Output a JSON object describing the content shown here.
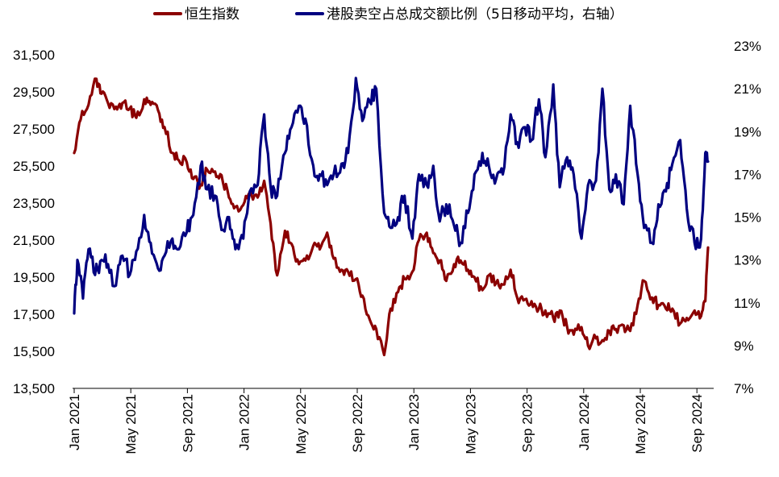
{
  "chart_data": {
    "type": "line",
    "title": "",
    "xlabel": "",
    "ylabel": "",
    "x_ticks": [
      "Jan 2021",
      "May 2021",
      "Sep 2021",
      "Jan 2022",
      "May 2022",
      "Sep 2022",
      "Jan 2023",
      "May 2023",
      "Sep 2023",
      "Jan 2024",
      "May 2024",
      "Sep 2024"
    ],
    "left_axis": {
      "ylim": [
        13500,
        31500
      ],
      "ticks": [
        "13,500",
        "15,500",
        "17,500",
        "19,500",
        "21,500",
        "23,500",
        "25,500",
        "27,500",
        "29,500",
        "31,500"
      ]
    },
    "right_axis": {
      "ylim": [
        7,
        23
      ],
      "ticks": [
        "7%",
        "9%",
        "11%",
        "13%",
        "15%",
        "17%",
        "19%",
        "21%",
        "23%"
      ]
    },
    "legend": {
      "placement": "top"
    },
    "series": [
      {
        "name": "恒生指数",
        "axis": "left",
        "color": "#8b0000",
        "points": [
          [
            "2021-01-01",
            26200
          ],
          [
            "2021-01-15",
            28000
          ],
          [
            "2021-02-01",
            28800
          ],
          [
            "2021-02-18",
            30200
          ],
          [
            "2021-03-01",
            29400
          ],
          [
            "2021-03-15",
            28900
          ],
          [
            "2021-04-01",
            28700
          ],
          [
            "2021-04-15",
            28900
          ],
          [
            "2021-05-01",
            28600
          ],
          [
            "2021-05-15",
            28100
          ],
          [
            "2021-06-01",
            29100
          ],
          [
            "2021-06-15",
            28800
          ],
          [
            "2021-07-01",
            28500
          ],
          [
            "2021-07-15",
            27600
          ],
          [
            "2021-08-01",
            26200
          ],
          [
            "2021-08-15",
            25800
          ],
          [
            "2021-09-01",
            25700
          ],
          [
            "2021-09-15",
            24800
          ],
          [
            "2021-10-01",
            24500
          ],
          [
            "2021-10-15",
            25300
          ],
          [
            "2021-11-01",
            25200
          ],
          [
            "2021-11-15",
            25000
          ],
          [
            "2021-12-01",
            23800
          ],
          [
            "2021-12-15",
            23300
          ],
          [
            "2022-01-01",
            23400
          ],
          [
            "2022-01-15",
            24100
          ],
          [
            "2022-02-01",
            23800
          ],
          [
            "2022-02-15",
            24700
          ],
          [
            "2022-03-01",
            22400
          ],
          [
            "2022-03-15",
            19600
          ],
          [
            "2022-04-01",
            22000
          ],
          [
            "2022-04-15",
            21300
          ],
          [
            "2022-05-01",
            20200
          ],
          [
            "2022-05-15",
            20400
          ],
          [
            "2022-06-01",
            21200
          ],
          [
            "2022-06-15",
            21000
          ],
          [
            "2022-07-01",
            21900
          ],
          [
            "2022-07-15",
            20500
          ],
          [
            "2022-08-01",
            19900
          ],
          [
            "2022-08-15",
            19800
          ],
          [
            "2022-09-01",
            19400
          ],
          [
            "2022-09-15",
            18500
          ],
          [
            "2022-10-01",
            17200
          ],
          [
            "2022-10-15",
            16700
          ],
          [
            "2022-11-01",
            15300
          ],
          [
            "2022-11-15",
            17800
          ],
          [
            "2022-12-01",
            18700
          ],
          [
            "2022-12-15",
            19400
          ],
          [
            "2023-01-01",
            19800
          ],
          [
            "2023-01-15",
            21500
          ],
          [
            "2023-02-01",
            21900
          ],
          [
            "2023-02-15",
            20800
          ],
          [
            "2023-03-01",
            20400
          ],
          [
            "2023-03-15",
            19300
          ],
          [
            "2023-04-01",
            20200
          ],
          [
            "2023-04-15",
            20400
          ],
          [
            "2023-05-01",
            19900
          ],
          [
            "2023-05-15",
            19500
          ],
          [
            "2023-06-01",
            18800
          ],
          [
            "2023-06-15",
            19600
          ],
          [
            "2023-07-01",
            19200
          ],
          [
            "2023-07-15",
            19100
          ],
          [
            "2023-08-01",
            19900
          ],
          [
            "2023-08-15",
            18400
          ],
          [
            "2023-09-01",
            18300
          ],
          [
            "2023-09-15",
            18200
          ],
          [
            "2023-10-01",
            17800
          ],
          [
            "2023-10-15",
            17700
          ],
          [
            "2023-11-01",
            17300
          ],
          [
            "2023-11-15",
            17700
          ],
          [
            "2023-12-01",
            16800
          ],
          [
            "2023-12-15",
            16400
          ],
          [
            "2024-01-01",
            16800
          ],
          [
            "2024-01-15",
            15800
          ],
          [
            "2024-02-01",
            16200
          ],
          [
            "2024-02-15",
            16100
          ],
          [
            "2024-03-01",
            16600
          ],
          [
            "2024-03-15",
            16700
          ],
          [
            "2024-04-01",
            16900
          ],
          [
            "2024-04-15",
            16600
          ],
          [
            "2024-05-01",
            18000
          ],
          [
            "2024-05-15",
            19300
          ],
          [
            "2024-06-01",
            18400
          ],
          [
            "2024-06-15",
            18000
          ],
          [
            "2024-07-01",
            17800
          ],
          [
            "2024-07-15",
            17800
          ],
          [
            "2024-08-01",
            17000
          ],
          [
            "2024-08-15",
            17300
          ],
          [
            "2024-09-01",
            17700
          ],
          [
            "2024-09-15",
            17400
          ],
          [
            "2024-09-24",
            18200
          ],
          [
            "2024-09-30",
            21100
          ]
        ]
      },
      {
        "name": "港股卖空占总成交额比例（5日移动平均，右轴）",
        "axis": "right",
        "color": "#000080",
        "points": [
          [
            "2021-01-01",
            10.5
          ],
          [
            "2021-01-08",
            13.0
          ],
          [
            "2021-01-20",
            11.2
          ],
          [
            "2021-02-01",
            13.5
          ],
          [
            "2021-02-15",
            12.3
          ],
          [
            "2021-03-01",
            13.0
          ],
          [
            "2021-03-15",
            12.8
          ],
          [
            "2021-04-01",
            11.8
          ],
          [
            "2021-04-15",
            13.2
          ],
          [
            "2021-05-01",
            12.3
          ],
          [
            "2021-05-15",
            13.4
          ],
          [
            "2021-06-01",
            15.1
          ],
          [
            "2021-06-15",
            13.8
          ],
          [
            "2021-07-01",
            12.6
          ],
          [
            "2021-07-15",
            13.2
          ],
          [
            "2021-08-01",
            14.0
          ],
          [
            "2021-08-15",
            13.5
          ],
          [
            "2021-09-01",
            14.3
          ],
          [
            "2021-09-15",
            15.1
          ],
          [
            "2021-10-01",
            17.4
          ],
          [
            "2021-10-15",
            16.3
          ],
          [
            "2021-11-01",
            16.0
          ],
          [
            "2021-11-15",
            14.4
          ],
          [
            "2021-12-01",
            15.0
          ],
          [
            "2021-12-15",
            13.5
          ],
          [
            "2022-01-01",
            14.0
          ],
          [
            "2022-01-15",
            16.2
          ],
          [
            "2022-02-01",
            16.5
          ],
          [
            "2022-02-15",
            19.8
          ],
          [
            "2022-03-01",
            16.4
          ],
          [
            "2022-03-15",
            16.0
          ],
          [
            "2022-04-01",
            18.0
          ],
          [
            "2022-04-15",
            19.2
          ],
          [
            "2022-05-01",
            20.2
          ],
          [
            "2022-05-15",
            19.6
          ],
          [
            "2022-06-01",
            17.4
          ],
          [
            "2022-06-15",
            17.0
          ],
          [
            "2022-07-01",
            16.5
          ],
          [
            "2022-07-15",
            17.0
          ],
          [
            "2022-08-01",
            17.5
          ],
          [
            "2022-08-15",
            18.0
          ],
          [
            "2022-09-01",
            21.5
          ],
          [
            "2022-09-15",
            19.5
          ],
          [
            "2022-10-01",
            20.4
          ],
          [
            "2022-10-15",
            21.0
          ],
          [
            "2022-11-01",
            15.2
          ],
          [
            "2022-11-15",
            14.5
          ],
          [
            "2022-12-01",
            15.0
          ],
          [
            "2022-12-15",
            16.0
          ],
          [
            "2023-01-01",
            14.0
          ],
          [
            "2023-01-15",
            17.0
          ],
          [
            "2023-02-01",
            16.5
          ],
          [
            "2023-02-15",
            17.4
          ],
          [
            "2023-03-01",
            14.8
          ],
          [
            "2023-03-15",
            15.6
          ],
          [
            "2023-04-01",
            14.6
          ],
          [
            "2023-04-15",
            13.8
          ],
          [
            "2023-05-01",
            15.2
          ],
          [
            "2023-05-15",
            17.0
          ],
          [
            "2023-06-01",
            18.0
          ],
          [
            "2023-06-15",
            17.4
          ],
          [
            "2023-07-01",
            16.8
          ],
          [
            "2023-07-15",
            17.0
          ],
          [
            "2023-08-01",
            19.8
          ],
          [
            "2023-08-15",
            18.5
          ],
          [
            "2023-09-01",
            19.2
          ],
          [
            "2023-09-15",
            18.6
          ],
          [
            "2023-10-01",
            20.5
          ],
          [
            "2023-10-15",
            17.8
          ],
          [
            "2023-11-01",
            21.2
          ],
          [
            "2023-11-15",
            16.4
          ],
          [
            "2023-12-01",
            17.8
          ],
          [
            "2023-12-15",
            17.0
          ],
          [
            "2024-01-01",
            14.0
          ],
          [
            "2024-01-15",
            16.5
          ],
          [
            "2024-02-01",
            16.7
          ],
          [
            "2024-02-15",
            21.0
          ],
          [
            "2024-03-01",
            16.3
          ],
          [
            "2024-03-15",
            17.0
          ],
          [
            "2024-04-01",
            15.6
          ],
          [
            "2024-04-15",
            20.2
          ],
          [
            "2024-05-01",
            17.0
          ],
          [
            "2024-05-15",
            14.5
          ],
          [
            "2024-06-01",
            13.8
          ],
          [
            "2024-06-15",
            15.6
          ],
          [
            "2024-07-01",
            16.2
          ],
          [
            "2024-07-15",
            17.5
          ],
          [
            "2024-08-01",
            18.6
          ],
          [
            "2024-08-15",
            15.4
          ],
          [
            "2024-09-01",
            13.8
          ],
          [
            "2024-09-15",
            14.0
          ],
          [
            "2024-09-24",
            18.0
          ],
          [
            "2024-09-30",
            17.6
          ]
        ]
      }
    ]
  }
}
